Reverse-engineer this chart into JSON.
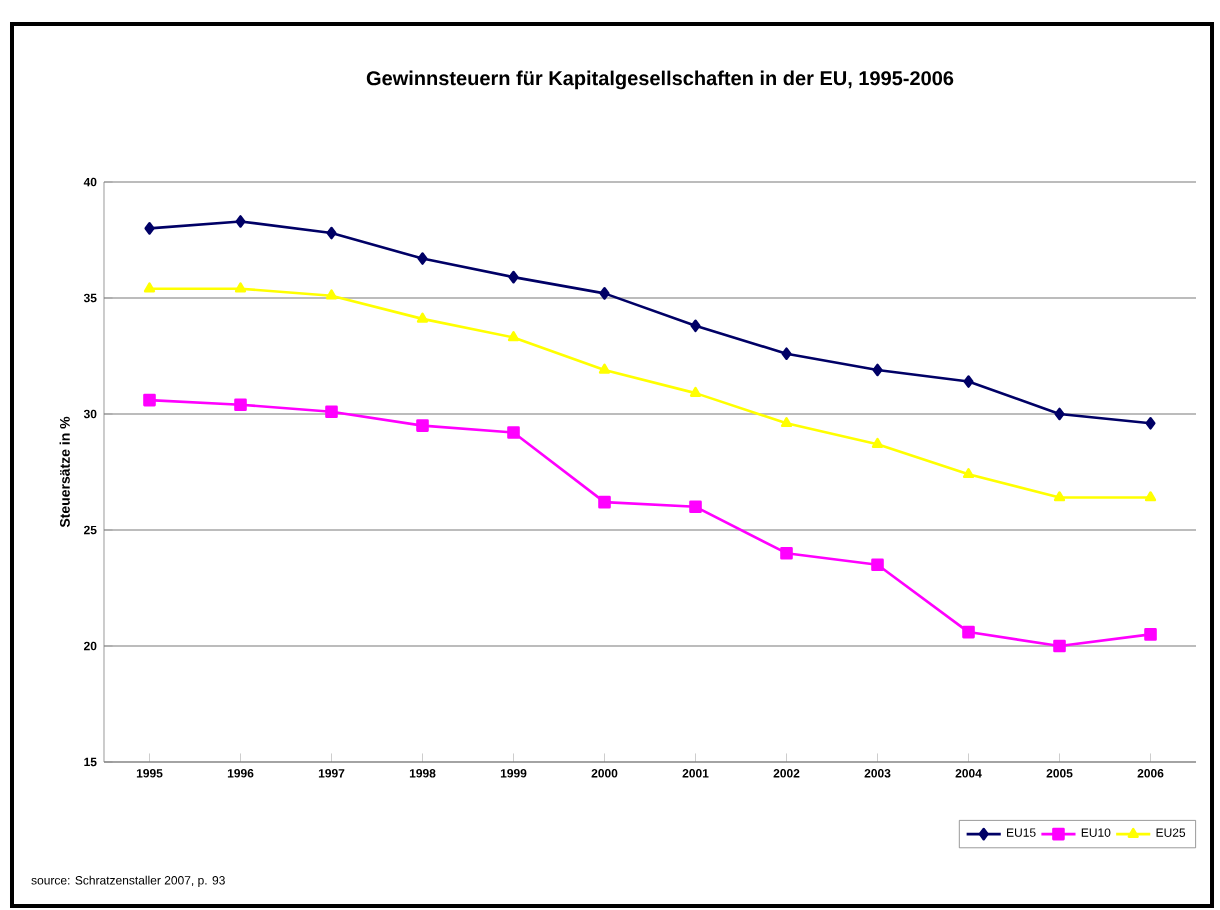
{
  "chart_data": {
    "type": "line",
    "title": "Gewinnsteuern für Kapitalgesellschaften in der EU, 1995-2006",
    "ylabel": "Steuersätze in %",
    "categories": [
      "1995",
      "1996",
      "1997",
      "1998",
      "1999",
      "2000",
      "2001",
      "2002",
      "2003",
      "2004",
      "2005",
      "2006"
    ],
    "series": [
      {
        "name": "EU15",
        "color": "#000066",
        "marker": "diamond",
        "values": [
          38.0,
          38.3,
          37.8,
          36.7,
          35.9,
          35.2,
          33.8,
          32.6,
          31.9,
          31.4,
          30.0,
          29.6
        ]
      },
      {
        "name": "EU10",
        "color": "#ff00ff",
        "marker": "square",
        "values": [
          30.6,
          30.4,
          30.1,
          29.5,
          29.2,
          26.2,
          26.0,
          24.0,
          23.5,
          20.6,
          20.0,
          20.5
        ]
      },
      {
        "name": "EU25",
        "color": "#ffff00",
        "marker": "triangle",
        "values": [
          35.4,
          35.4,
          35.1,
          34.1,
          33.3,
          31.9,
          30.9,
          29.6,
          28.7,
          27.4,
          26.4,
          26.4
        ]
      }
    ],
    "ylim": [
      15,
      40
    ],
    "yticks": [
      15,
      20,
      25,
      30,
      35,
      40
    ],
    "grid": "y",
    "legend": "bottom right",
    "annotations": [
      "source: Schratzenstaller 2007, p. 93"
    ]
  }
}
